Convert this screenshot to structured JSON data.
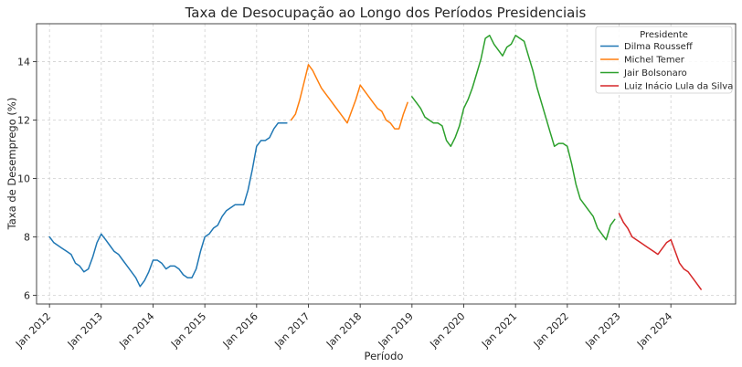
{
  "chart_data": {
    "type": "line",
    "title": "Taxa de Desocupação ao Longo dos Períodos Presidenciais",
    "xlabel": "Período",
    "ylabel": "Taxa de Desemprego (%)",
    "xlim": [
      "2011-10",
      "2025-04"
    ],
    "ylim": [
      5.7,
      15.3
    ],
    "y_ticks": [
      6,
      8,
      10,
      12,
      14
    ],
    "x_ticks": [
      {
        "date": "2012-01",
        "label": "Jan 2012"
      },
      {
        "date": "2013-01",
        "label": "Jan 2013"
      },
      {
        "date": "2014-01",
        "label": "Jan 2014"
      },
      {
        "date": "2015-01",
        "label": "Jan 2015"
      },
      {
        "date": "2016-01",
        "label": "Jan 2016"
      },
      {
        "date": "2017-01",
        "label": "Jan 2017"
      },
      {
        "date": "2018-01",
        "label": "Jan 2018"
      },
      {
        "date": "2019-01",
        "label": "Jan 2019"
      },
      {
        "date": "2020-01",
        "label": "Jan 2020"
      },
      {
        "date": "2021-01",
        "label": "Jan 2021"
      },
      {
        "date": "2022-01",
        "label": "Jan 2022"
      },
      {
        "date": "2023-01",
        "label": "Jan 2023"
      },
      {
        "date": "2024-01",
        "label": "Jan 2024"
      }
    ],
    "grid": true,
    "legend": {
      "title": "Presidente",
      "placement": "top-right"
    },
    "series": [
      {
        "name": "Dilma Rousseff",
        "color": "#1f77b4",
        "points": [
          [
            "2012-01",
            8.0
          ],
          [
            "2012-02",
            7.8
          ],
          [
            "2012-03",
            7.7
          ],
          [
            "2012-04",
            7.6
          ],
          [
            "2012-05",
            7.5
          ],
          [
            "2012-06",
            7.4
          ],
          [
            "2012-07",
            7.1
          ],
          [
            "2012-08",
            7.0
          ],
          [
            "2012-09",
            6.8
          ],
          [
            "2012-10",
            6.9
          ],
          [
            "2012-11",
            7.3
          ],
          [
            "2012-12",
            7.8
          ],
          [
            "2013-01",
            8.1
          ],
          [
            "2013-02",
            7.9
          ],
          [
            "2013-03",
            7.7
          ],
          [
            "2013-04",
            7.5
          ],
          [
            "2013-05",
            7.4
          ],
          [
            "2013-06",
            7.2
          ],
          [
            "2013-07",
            7.0
          ],
          [
            "2013-08",
            6.8
          ],
          [
            "2013-09",
            6.6
          ],
          [
            "2013-10",
            6.3
          ],
          [
            "2013-11",
            6.5
          ],
          [
            "2013-12",
            6.8
          ],
          [
            "2014-01",
            7.2
          ],
          [
            "2014-02",
            7.2
          ],
          [
            "2014-03",
            7.1
          ],
          [
            "2014-04",
            6.9
          ],
          [
            "2014-05",
            7.0
          ],
          [
            "2014-06",
            7.0
          ],
          [
            "2014-07",
            6.9
          ],
          [
            "2014-08",
            6.7
          ],
          [
            "2014-09",
            6.6
          ],
          [
            "2014-10",
            6.6
          ],
          [
            "2014-11",
            6.9
          ],
          [
            "2014-12",
            7.5
          ],
          [
            "2015-01",
            8.0
          ],
          [
            "2015-02",
            8.1
          ],
          [
            "2015-03",
            8.3
          ],
          [
            "2015-04",
            8.4
          ],
          [
            "2015-05",
            8.7
          ],
          [
            "2015-06",
            8.9
          ],
          [
            "2015-07",
            9.0
          ],
          [
            "2015-08",
            9.1
          ],
          [
            "2015-09",
            9.1
          ],
          [
            "2015-10",
            9.1
          ],
          [
            "2015-11",
            9.6
          ],
          [
            "2015-12",
            10.3
          ],
          [
            "2016-01",
            11.1
          ],
          [
            "2016-02",
            11.3
          ],
          [
            "2016-03",
            11.3
          ],
          [
            "2016-04",
            11.4
          ],
          [
            "2016-05",
            11.7
          ],
          [
            "2016-06",
            11.9
          ],
          [
            "2016-07",
            11.9
          ],
          [
            "2016-08",
            11.9
          ]
        ]
      },
      {
        "name": "Michel Temer",
        "color": "#ff7f0e",
        "points": [
          [
            "2016-09",
            12.0
          ],
          [
            "2016-10",
            12.2
          ],
          [
            "2016-11",
            12.7
          ],
          [
            "2016-12",
            13.3
          ],
          [
            "2017-01",
            13.9
          ],
          [
            "2017-02",
            13.7
          ],
          [
            "2017-03",
            13.4
          ],
          [
            "2017-04",
            13.1
          ],
          [
            "2017-05",
            12.9
          ],
          [
            "2017-06",
            12.7
          ],
          [
            "2017-07",
            12.5
          ],
          [
            "2017-08",
            12.3
          ],
          [
            "2017-09",
            12.1
          ],
          [
            "2017-10",
            11.9
          ],
          [
            "2017-11",
            12.3
          ],
          [
            "2017-12",
            12.7
          ],
          [
            "2018-01",
            13.2
          ],
          [
            "2018-02",
            13.0
          ],
          [
            "2018-03",
            12.8
          ],
          [
            "2018-04",
            12.6
          ],
          [
            "2018-05",
            12.4
          ],
          [
            "2018-06",
            12.3
          ],
          [
            "2018-07",
            12.0
          ],
          [
            "2018-08",
            11.9
          ],
          [
            "2018-09",
            11.7
          ],
          [
            "2018-10",
            11.7
          ],
          [
            "2018-11",
            12.2
          ],
          [
            "2018-12",
            12.6
          ]
        ]
      },
      {
        "name": "Jair Bolsonaro",
        "color": "#2ca02c",
        "points": [
          [
            "2019-01",
            12.8
          ],
          [
            "2019-02",
            12.6
          ],
          [
            "2019-03",
            12.4
          ],
          [
            "2019-04",
            12.1
          ],
          [
            "2019-05",
            12.0
          ],
          [
            "2019-06",
            11.9
          ],
          [
            "2019-07",
            11.9
          ],
          [
            "2019-08",
            11.8
          ],
          [
            "2019-09",
            11.3
          ],
          [
            "2019-10",
            11.1
          ],
          [
            "2019-11",
            11.4
          ],
          [
            "2019-12",
            11.8
          ],
          [
            "2020-01",
            12.4
          ],
          [
            "2020-02",
            12.7
          ],
          [
            "2020-03",
            13.1
          ],
          [
            "2020-04",
            13.6
          ],
          [
            "2020-05",
            14.1
          ],
          [
            "2020-06",
            14.8
          ],
          [
            "2020-07",
            14.9
          ],
          [
            "2020-08",
            14.6
          ],
          [
            "2020-09",
            14.4
          ],
          [
            "2020-10",
            14.2
          ],
          [
            "2020-11",
            14.5
          ],
          [
            "2020-12",
            14.6
          ],
          [
            "2021-01",
            14.9
          ],
          [
            "2021-02",
            14.8
          ],
          [
            "2021-03",
            14.7
          ],
          [
            "2021-04",
            14.2
          ],
          [
            "2021-05",
            13.7
          ],
          [
            "2021-06",
            13.1
          ],
          [
            "2021-07",
            12.6
          ],
          [
            "2021-08",
            12.1
          ],
          [
            "2021-09",
            11.6
          ],
          [
            "2021-10",
            11.1
          ],
          [
            "2021-11",
            11.2
          ],
          [
            "2021-12",
            11.2
          ],
          [
            "2022-01",
            11.1
          ],
          [
            "2022-02",
            10.5
          ],
          [
            "2022-03",
            9.8
          ],
          [
            "2022-04",
            9.3
          ],
          [
            "2022-05",
            9.1
          ],
          [
            "2022-06",
            8.9
          ],
          [
            "2022-07",
            8.7
          ],
          [
            "2022-08",
            8.3
          ],
          [
            "2022-09",
            8.1
          ],
          [
            "2022-10",
            7.9
          ],
          [
            "2022-11",
            8.4
          ],
          [
            "2022-12",
            8.6
          ]
        ]
      },
      {
        "name": "Luiz Inácio Lula da Silva",
        "color": "#d62728",
        "points": [
          [
            "2023-01",
            8.8
          ],
          [
            "2023-02",
            8.5
          ],
          [
            "2023-03",
            8.3
          ],
          [
            "2023-04",
            8.0
          ],
          [
            "2023-05",
            7.9
          ],
          [
            "2023-06",
            7.8
          ],
          [
            "2023-07",
            7.7
          ],
          [
            "2023-08",
            7.6
          ],
          [
            "2023-09",
            7.5
          ],
          [
            "2023-10",
            7.4
          ],
          [
            "2023-11",
            7.6
          ],
          [
            "2023-12",
            7.8
          ],
          [
            "2024-01",
            7.9
          ],
          [
            "2024-02",
            7.5
          ],
          [
            "2024-03",
            7.1
          ],
          [
            "2024-04",
            6.9
          ],
          [
            "2024-05",
            6.8
          ],
          [
            "2024-06",
            6.6
          ],
          [
            "2024-07",
            6.4
          ],
          [
            "2024-08",
            6.2
          ]
        ]
      }
    ]
  }
}
